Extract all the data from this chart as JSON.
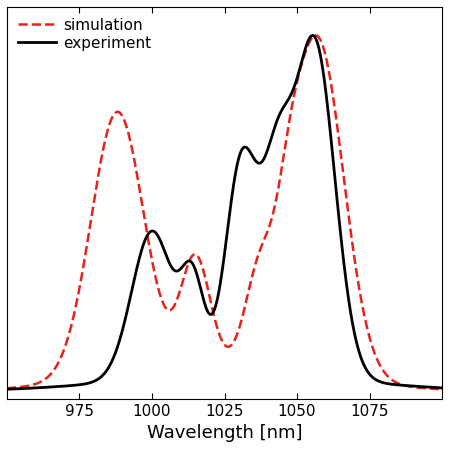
{
  "title": "",
  "xlabel": "Wavelength [nm]",
  "ylabel": "",
  "xlim": [
    950,
    1100
  ],
  "ylim": [
    -0.02,
    1.08
  ],
  "xticks": [
    975,
    1000,
    1025,
    1050,
    1075
  ],
  "xtick_labels": [
    "975",
    "1000",
    "1025",
    "1050",
    "1075"
  ],
  "sim_color": "#e8221a",
  "exp_color": "#000000",
  "sim_linestyle": "--",
  "exp_linestyle": "-",
  "sim_linewidth": 1.8,
  "exp_linewidth": 2.0,
  "legend_sim": "simulation",
  "legend_exp": "experiment",
  "figsize": [
    4.49,
    4.49
  ],
  "dpi": 100
}
